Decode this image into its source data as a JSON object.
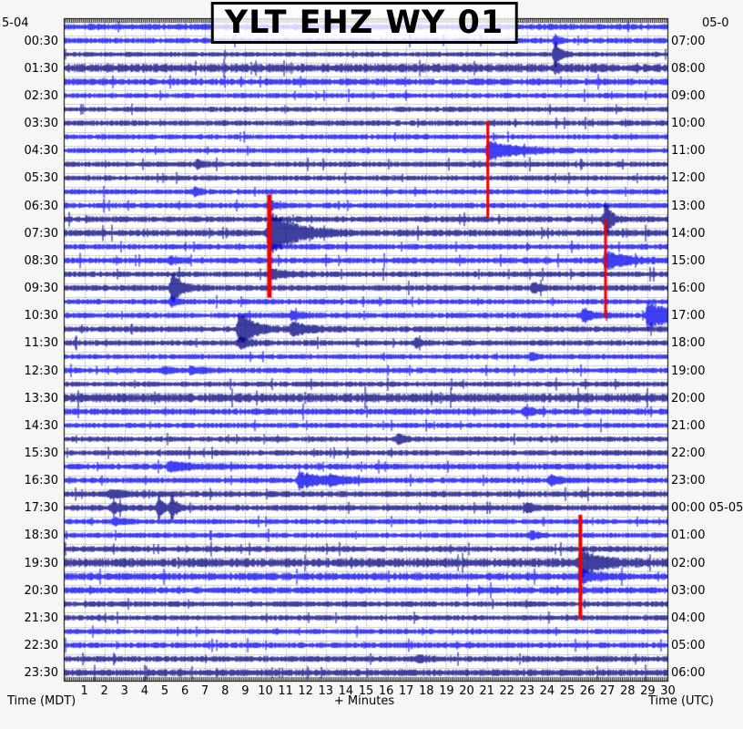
{
  "title": "YLT EHZ WY 01",
  "header": {
    "date_left": "5-04",
    "date_right": "05-0"
  },
  "axis": {
    "left_caption": "Time (MDT)",
    "bottom_caption": "+ Minutes",
    "right_caption": "Time (UTC)"
  },
  "left_labels": [
    "00:30",
    "01:30",
    "02:30",
    "03:30",
    "04:30",
    "05:30",
    "06:30",
    "07:30",
    "08:30",
    "09:30",
    "10:30",
    "11:30",
    "12:30",
    "13:30",
    "14:30",
    "15:30",
    "16:30",
    "17:30",
    "18:30",
    "19:30",
    "20:30",
    "21:30",
    "22:30",
    "23:30"
  ],
  "right_labels": [
    "07:00",
    "08:00",
    "09:00",
    "10:00",
    "11:00",
    "12:00",
    "13:00",
    "14:00",
    "15:00",
    "16:00",
    "17:00",
    "18:00",
    "19:00",
    "20:00",
    "21:00",
    "22:00",
    "23:00",
    "00:00 05-05",
    "01:00",
    "02:00",
    "03:00",
    "04:00",
    "05:00",
    "06:00"
  ],
  "minute_labels": [
    "1",
    "2",
    "3",
    "4",
    "5",
    "6",
    "7",
    "8",
    "9",
    "10",
    "11",
    "12",
    "13",
    "14",
    "15",
    "16",
    "17",
    "18",
    "19",
    "20",
    "21",
    "22",
    "23",
    "24",
    "25",
    "26",
    "27",
    "28",
    "29",
    "30"
  ],
  "colors": {
    "trace_even_hour": "#0101ef",
    "trace_odd_hour": "#000080",
    "clip_marker": "#ee0000",
    "grid_dots": "#999999",
    "frame": "#000000",
    "plot_bg": "#ffffff",
    "page_bg": "#f6f6f4"
  },
  "chart_data": {
    "type": "line",
    "subtype": "helicorder-seismogram",
    "station": "YLT EHZ WY 01",
    "minutes_per_line": 30,
    "num_lines": 48,
    "time_span_mdt": "00:00 05-04 to 00:00 05-05",
    "color_rule": "even MDT hours bright blue, odd MDT hours navy",
    "line_noise_amps": [
      3.4,
      3.2,
      2.8,
      4.8,
      3.8,
      3.0,
      3.0,
      3.2,
      2.9,
      3.0,
      3.1,
      3.0,
      3.0,
      3.2,
      3.4,
      3.8,
      3.2,
      3.4,
      3.2,
      3.4,
      3.0,
      3.2,
      3.4,
      3.2,
      3.0,
      3.2,
      3.0,
      5.0,
      3.6,
      3.0,
      3.0,
      3.2,
      3.4,
      3.2,
      3.4,
      3.4,
      3.0,
      3.0,
      3.4,
      5.0,
      4.2,
      3.8,
      3.2,
      3.0,
      3.0,
      3.2,
      3.4,
      3.8
    ],
    "events": [
      {
        "line": 2,
        "minute": 24.4,
        "amp": 15,
        "coda": 0.25
      },
      {
        "line": 1,
        "minute": 24.4,
        "amp": 5,
        "coda": 0.2
      },
      {
        "line": 3,
        "minute": 24.4,
        "amp": 4,
        "coda": 0.2
      },
      {
        "line": 12,
        "minute": 6.5,
        "amp": 5,
        "coda": 0.25
      },
      {
        "line": 10,
        "minute": 6.6,
        "amp": 4,
        "coda": 0.25
      },
      {
        "line": 15,
        "minute": 10.2,
        "amp": 26,
        "coda": 1.1
      },
      {
        "line": 18,
        "minute": 10.3,
        "amp": 5,
        "coda": 0.8
      },
      {
        "line": 13,
        "minute": 10.2,
        "amp": 4,
        "coda": 0.3
      },
      {
        "line": 9,
        "minute": 21.05,
        "amp": 10,
        "coda": 1.4
      },
      {
        "line": 14,
        "minute": 26.9,
        "amp": 20,
        "coda": 0.25
      },
      {
        "line": 17,
        "minute": 26.9,
        "amp": 9,
        "coda": 1.0
      },
      {
        "line": 21,
        "minute": 25.8,
        "amp": 7,
        "coda": 0.5
      },
      {
        "line": 21,
        "minute": 29.0,
        "amp": 13,
        "coda": 1.6
      },
      {
        "line": 19,
        "minute": 5.35,
        "amp": 15,
        "coda": 0.5
      },
      {
        "line": 17,
        "minute": 5.3,
        "amp": 4,
        "coda": 0.3
      },
      {
        "line": 20,
        "minute": 5.35,
        "amp": 5,
        "coda": 0.3
      },
      {
        "line": 22,
        "minute": 8.7,
        "amp": 17,
        "coda": 0.7
      },
      {
        "line": 23,
        "minute": 8.75,
        "amp": 6,
        "coda": 0.4
      },
      {
        "line": 22,
        "minute": 11.3,
        "amp": 7,
        "coda": 0.8
      },
      {
        "line": 21,
        "minute": 11.3,
        "amp": 4,
        "coda": 0.4
      },
      {
        "line": 23,
        "minute": 17.5,
        "amp": 4,
        "coda": 0.3
      },
      {
        "line": 25,
        "minute": 6.3,
        "amp": 4,
        "coda": 0.5
      },
      {
        "line": 25,
        "minute": 5.0,
        "amp": 3,
        "coda": 0.3
      },
      {
        "line": 19,
        "minute": 23.3,
        "amp": 5,
        "coda": 0.3
      },
      {
        "line": 24,
        "minute": 23.2,
        "amp": 4,
        "coda": 0.3
      },
      {
        "line": 30,
        "minute": 16.6,
        "amp": 5,
        "coda": 0.3
      },
      {
        "line": 28,
        "minute": 22.9,
        "amp": 4,
        "coda": 0.3
      },
      {
        "line": 33,
        "minute": 11.7,
        "amp": 9,
        "coda": 1.1
      },
      {
        "line": 33,
        "minute": 13.2,
        "amp": 4,
        "coda": 0.5
      },
      {
        "line": 35,
        "minute": 4.7,
        "amp": 12,
        "coda": 0.22
      },
      {
        "line": 35,
        "minute": 5.35,
        "amp": 12,
        "coda": 0.22
      },
      {
        "line": 35,
        "minute": 2.4,
        "amp": 5,
        "coda": 0.5
      },
      {
        "line": 36,
        "minute": 2.5,
        "amp": 4,
        "coda": 0.4
      },
      {
        "line": 34,
        "minute": 2.3,
        "amp": 4,
        "coda": 0.8
      },
      {
        "line": 35,
        "minute": 23.0,
        "amp": 4,
        "coda": 0.4
      },
      {
        "line": 33,
        "minute": 24.2,
        "amp": 5,
        "coda": 0.4
      },
      {
        "line": 37,
        "minute": 23.2,
        "amp": 4,
        "coda": 0.3
      },
      {
        "line": 46,
        "minute": 17.6,
        "amp": 4,
        "coda": 0.3
      },
      {
        "line": 39,
        "minute": 25.65,
        "amp": 14,
        "coda": 0.8
      },
      {
        "line": 40,
        "minute": 25.65,
        "amp": 7,
        "coda": 0.5
      },
      {
        "line": 32,
        "minute": 5.2,
        "amp": 4,
        "coda": 1.2
      }
    ],
    "clip_bars": [
      {
        "minute": 10.2,
        "from_line": 12.2,
        "to_line": 19.7,
        "width": 5
      },
      {
        "minute": 21.05,
        "from_line": 6.9,
        "to_line": 13.85,
        "width": 3
      },
      {
        "minute": 26.9,
        "from_line": 14.0,
        "to_line": 21.2,
        "width": 3
      },
      {
        "minute": 25.65,
        "from_line": 35.5,
        "to_line": 43.1,
        "width": 4
      }
    ]
  }
}
